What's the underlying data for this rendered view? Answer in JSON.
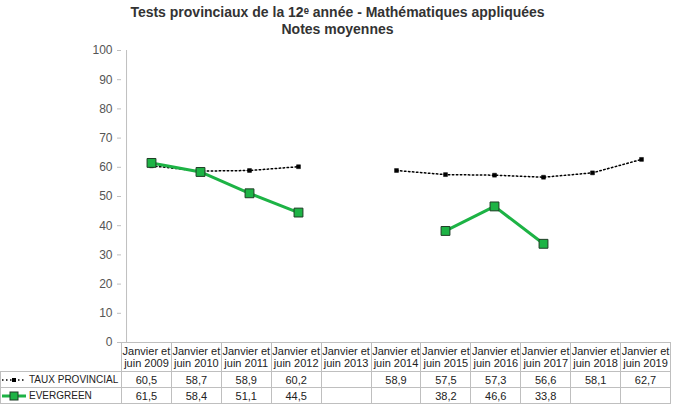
{
  "chart_data": {
    "type": "line",
    "title": "Tests provinciaux de la 12ᵉ année - Mathématiques appliquées",
    "subtitle": "Notes moyennes",
    "categories": [
      "Janvier et juin 2009",
      "Janvier et juin 2010",
      "Janvier et juin 2011",
      "Janvier et juin 2012",
      "Janvier et juin 2013",
      "Janvier et juin 2014",
      "Janvier et juin 2015",
      "Janvier et juin 2016",
      "Janvier et juin 2017",
      "Janvier et juin 2018",
      "Janvier et juin 2019"
    ],
    "series": [
      {
        "name": "TAUX PROVINCIAL",
        "color": "#000000",
        "marker": "square",
        "line_style": "dotted",
        "values": [
          60.5,
          58.7,
          58.9,
          60.2,
          null,
          58.9,
          57.5,
          57.3,
          56.6,
          58.1,
          62.7
        ],
        "value_labels": [
          "60,5",
          "58,7",
          "58,9",
          "60,2",
          null,
          "58,9",
          "57,5",
          "57,3",
          "56,6",
          "58,1",
          "62,7"
        ]
      },
      {
        "name": "EVERGREEN",
        "color": "#1db345",
        "marker": "square",
        "line_style": "solid",
        "values": [
          61.5,
          58.4,
          51.1,
          44.5,
          null,
          null,
          38.2,
          46.6,
          33.8,
          null,
          null
        ],
        "value_labels": [
          "61,5",
          "58,4",
          "51,1",
          "44,5",
          null,
          null,
          "38,2",
          "46,6",
          "33,8",
          null,
          null
        ]
      }
    ],
    "ylim": [
      0,
      100
    ],
    "yticks": [
      0,
      10,
      20,
      30,
      40,
      50,
      60,
      70,
      80,
      90,
      100
    ],
    "grid": false
  }
}
